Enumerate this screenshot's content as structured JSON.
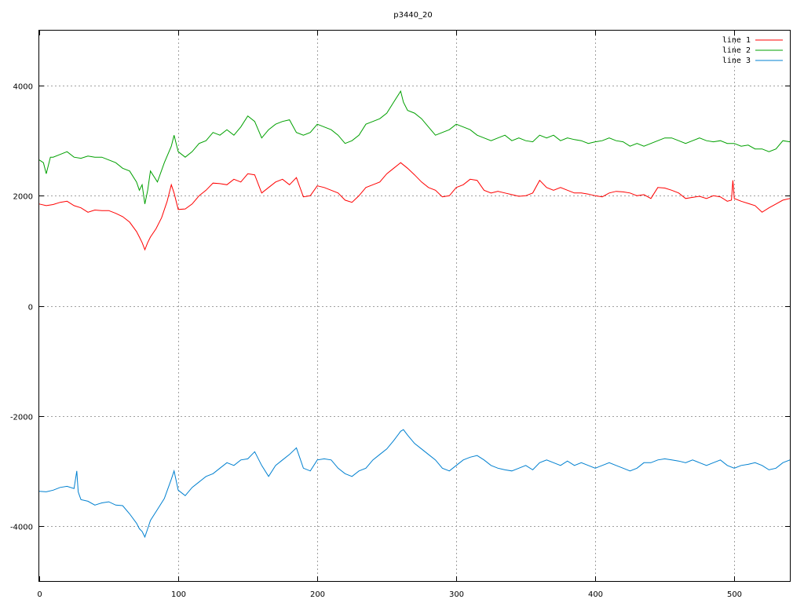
{
  "chart_data": {
    "type": "line",
    "title": "p3440_20",
    "xlabel": "",
    "ylabel": "",
    "xlim": [
      0,
      540
    ],
    "ylim": [
      -5000,
      5000
    ],
    "xticks": [
      0,
      100,
      200,
      300,
      400,
      500
    ],
    "yticks": [
      -4000,
      -2000,
      0,
      2000,
      4000
    ],
    "ytick_labels": [
      "-4000",
      "-2000",
      "0",
      "2000",
      "4000"
    ],
    "grid": true,
    "legend_position": "top-right",
    "series": [
      {
        "name": "line 1",
        "color": "#ff0000",
        "x": [
          0,
          5,
          10,
          15,
          20,
          25,
          30,
          35,
          40,
          45,
          50,
          55,
          60,
          65,
          70,
          72,
          74,
          76,
          78,
          80,
          84,
          88,
          92,
          95,
          97,
          100,
          105,
          110,
          115,
          120,
          125,
          130,
          135,
          140,
          145,
          150,
          155,
          160,
          165,
          170,
          175,
          180,
          185,
          190,
          195,
          200,
          205,
          210,
          215,
          220,
          225,
          230,
          235,
          240,
          245,
          250,
          255,
          260,
          265,
          270,
          275,
          280,
          285,
          290,
          295,
          300,
          305,
          310,
          315,
          320,
          325,
          330,
          335,
          340,
          345,
          350,
          355,
          360,
          365,
          370,
          375,
          380,
          385,
          390,
          395,
          400,
          405,
          410,
          415,
          420,
          425,
          430,
          435,
          440,
          445,
          450,
          455,
          460,
          465,
          470,
          475,
          480,
          485,
          490,
          495,
          498,
          499,
          500,
          505,
          510,
          515,
          520,
          525,
          530,
          535,
          540
        ],
        "values": [
          1850,
          1820,
          1840,
          1880,
          1900,
          1820,
          1780,
          1700,
          1740,
          1730,
          1730,
          1680,
          1620,
          1520,
          1350,
          1250,
          1150,
          1020,
          1150,
          1250,
          1400,
          1600,
          1900,
          2200,
          2050,
          1750,
          1760,
          1850,
          2000,
          2100,
          2230,
          2220,
          2200,
          2300,
          2250,
          2400,
          2380,
          2050,
          2150,
          2250,
          2300,
          2200,
          2330,
          1980,
          2000,
          2180,
          2150,
          2100,
          2050,
          1920,
          1880,
          2000,
          2150,
          2200,
          2250,
          2400,
          2500,
          2600,
          2500,
          2380,
          2250,
          2150,
          2100,
          1980,
          2000,
          2150,
          2200,
          2300,
          2280,
          2100,
          2050,
          2080,
          2050,
          2020,
          1990,
          2000,
          2050,
          2280,
          2150,
          2100,
          2150,
          2100,
          2050,
          2050,
          2030,
          2000,
          1980,
          2050,
          2080,
          2070,
          2050,
          2000,
          2020,
          1950,
          2150,
          2140,
          2100,
          2050,
          1950,
          1970,
          1990,
          1950,
          2000,
          1980,
          1900,
          1920,
          2280,
          1950,
          1900,
          1860,
          1820,
          1700,
          1780,
          1850,
          1920,
          1950
        ]
      },
      {
        "name": "line 2",
        "color": "#00a000",
        "x": [
          0,
          3,
          5,
          8,
          10,
          15,
          20,
          25,
          30,
          35,
          40,
          45,
          50,
          55,
          60,
          65,
          70,
          72,
          74,
          76,
          78,
          80,
          85,
          90,
          95,
          97,
          100,
          105,
          110,
          115,
          120,
          125,
          130,
          135,
          140,
          145,
          150,
          155,
          160,
          165,
          170,
          175,
          180,
          185,
          190,
          195,
          200,
          205,
          210,
          215,
          220,
          225,
          230,
          235,
          240,
          245,
          250,
          255,
          260,
          262,
          265,
          270,
          275,
          280,
          285,
          290,
          295,
          300,
          305,
          310,
          315,
          320,
          325,
          330,
          335,
          340,
          345,
          350,
          355,
          360,
          365,
          370,
          375,
          380,
          385,
          390,
          395,
          400,
          405,
          410,
          415,
          420,
          425,
          430,
          435,
          440,
          445,
          450,
          455,
          460,
          465,
          470,
          475,
          480,
          485,
          490,
          495,
          500,
          505,
          510,
          515,
          520,
          525,
          530,
          535,
          540
        ],
        "values": [
          2650,
          2600,
          2400,
          2700,
          2700,
          2750,
          2800,
          2700,
          2680,
          2720,
          2700,
          2700,
          2650,
          2600,
          2500,
          2450,
          2250,
          2100,
          2200,
          1850,
          2100,
          2450,
          2250,
          2600,
          2900,
          3100,
          2800,
          2700,
          2800,
          2950,
          3000,
          3150,
          3100,
          3200,
          3100,
          3250,
          3450,
          3350,
          3050,
          3200,
          3300,
          3350,
          3380,
          3150,
          3100,
          3150,
          3300,
          3250,
          3200,
          3100,
          2950,
          3000,
          3100,
          3300,
          3350,
          3400,
          3500,
          3700,
          3900,
          3700,
          3550,
          3500,
          3400,
          3250,
          3100,
          3150,
          3200,
          3300,
          3250,
          3200,
          3100,
          3050,
          3000,
          3050,
          3100,
          3000,
          3050,
          3000,
          2980,
          3100,
          3050,
          3100,
          3000,
          3050,
          3020,
          3000,
          2950,
          2980,
          3000,
          3050,
          3000,
          2980,
          2900,
          2950,
          2900,
          2950,
          3000,
          3050,
          3050,
          3000,
          2950,
          3000,
          3050,
          3000,
          2980,
          3000,
          2950,
          2950,
          2900,
          2920,
          2850,
          2850,
          2800,
          2850,
          3000,
          2980
        ]
      },
      {
        "name": "line 3",
        "color": "#0080d0",
        "x": [
          0,
          5,
          10,
          15,
          20,
          25,
          27,
          28,
          29,
          30,
          35,
          40,
          45,
          50,
          55,
          60,
          65,
          70,
          72,
          74,
          76,
          78,
          80,
          85,
          90,
          95,
          97,
          100,
          105,
          110,
          115,
          120,
          125,
          130,
          135,
          140,
          145,
          150,
          155,
          160,
          165,
          170,
          175,
          180,
          185,
          190,
          195,
          200,
          205,
          210,
          215,
          220,
          225,
          230,
          235,
          240,
          245,
          250,
          255,
          260,
          262,
          265,
          270,
          275,
          280,
          285,
          290,
          295,
          300,
          305,
          310,
          315,
          320,
          325,
          330,
          335,
          340,
          345,
          350,
          355,
          360,
          365,
          370,
          375,
          380,
          385,
          390,
          395,
          400,
          405,
          410,
          415,
          420,
          425,
          430,
          435,
          440,
          445,
          450,
          455,
          460,
          465,
          470,
          475,
          480,
          485,
          490,
          495,
          500,
          505,
          510,
          515,
          520,
          525,
          530,
          535,
          540
        ],
        "values": [
          -3370,
          -3380,
          -3350,
          -3300,
          -3280,
          -3320,
          -3000,
          -3380,
          -3450,
          -3520,
          -3550,
          -3620,
          -3580,
          -3560,
          -3620,
          -3630,
          -3780,
          -3950,
          -4050,
          -4100,
          -4200,
          -4050,
          -3900,
          -3700,
          -3500,
          -3150,
          -3000,
          -3350,
          -3450,
          -3300,
          -3200,
          -3100,
          -3050,
          -2950,
          -2850,
          -2900,
          -2800,
          -2780,
          -2650,
          -2900,
          -3100,
          -2900,
          -2800,
          -2700,
          -2580,
          -2950,
          -3000,
          -2800,
          -2780,
          -2800,
          -2950,
          -3050,
          -3100,
          -3000,
          -2950,
          -2800,
          -2700,
          -2600,
          -2450,
          -2280,
          -2250,
          -2350,
          -2500,
          -2600,
          -2700,
          -2800,
          -2950,
          -3000,
          -2900,
          -2800,
          -2750,
          -2720,
          -2800,
          -2900,
          -2950,
          -2980,
          -3000,
          -2950,
          -2900,
          -2980,
          -2850,
          -2800,
          -2850,
          -2900,
          -2820,
          -2900,
          -2850,
          -2900,
          -2950,
          -2900,
          -2850,
          -2900,
          -2950,
          -3000,
          -2950,
          -2850,
          -2850,
          -2800,
          -2780,
          -2800,
          -2820,
          -2850,
          -2800,
          -2850,
          -2900,
          -2850,
          -2800,
          -2900,
          -2950,
          -2900,
          -2880,
          -2850,
          -2900,
          -2980,
          -2950,
          -2850,
          -2800
        ]
      }
    ]
  }
}
